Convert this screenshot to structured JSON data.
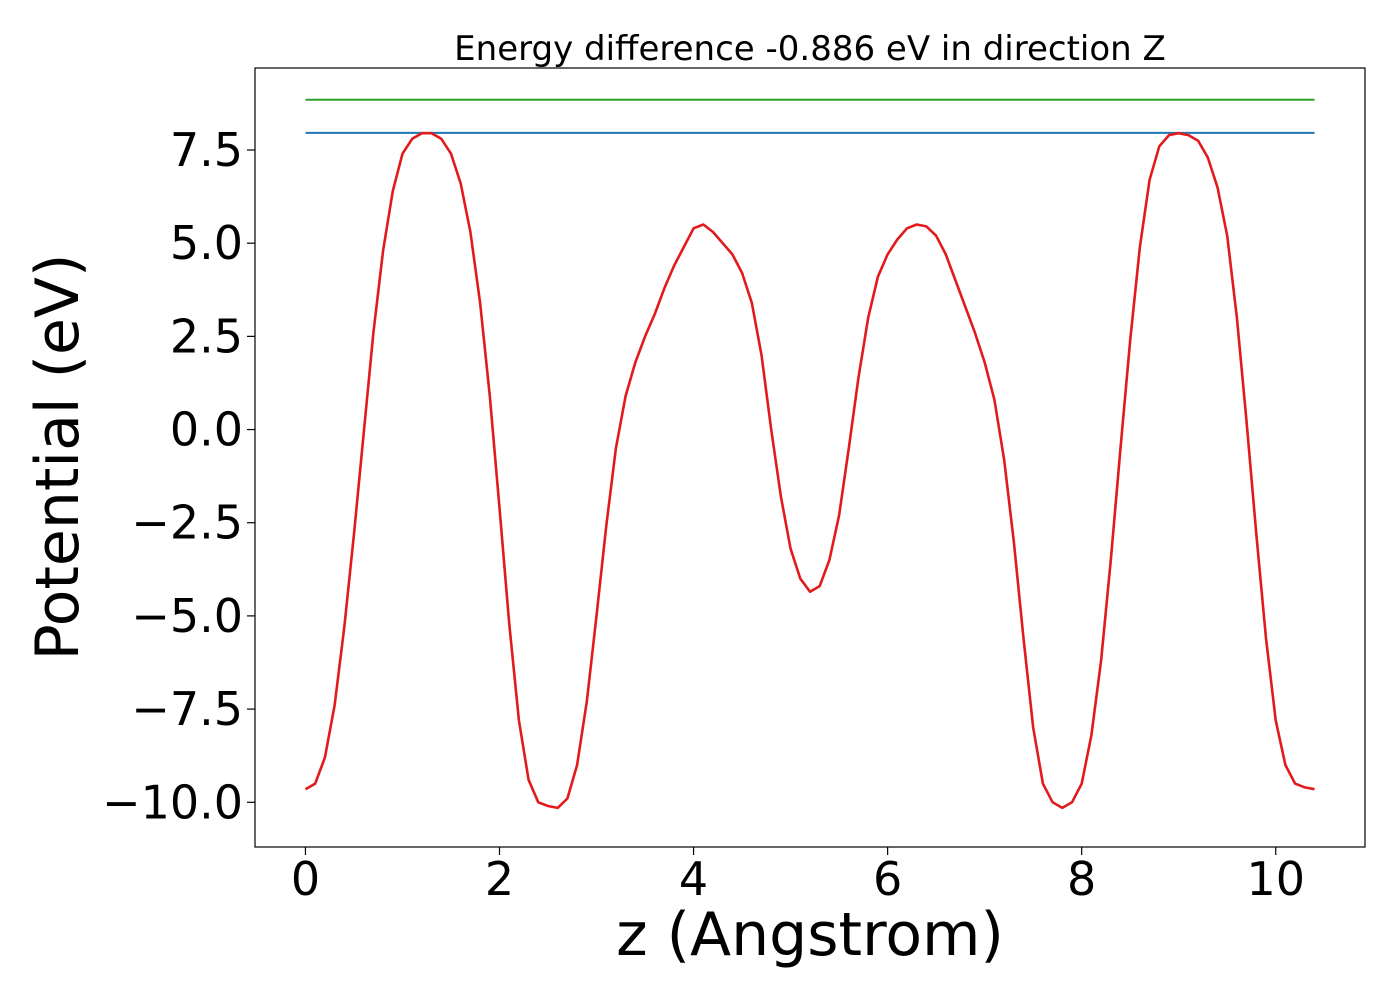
{
  "chart_data": {
    "type": "line",
    "title": "Energy difference -0.886 eV in direction Z",
    "xlabel": "z (Angstrom)",
    "ylabel": "Potential (eV)",
    "xlim": [
      -0.52,
      10.92
    ],
    "ylim": [
      -11.2,
      9.7
    ],
    "grid": false,
    "xticks": [
      0,
      2,
      4,
      6,
      8,
      10
    ],
    "xtick_labels": [
      "0",
      "2",
      "4",
      "6",
      "8",
      "10"
    ],
    "yticks": [
      7.5,
      5.0,
      2.5,
      0.0,
      -2.5,
      -5.0,
      -7.5,
      -10.0
    ],
    "ytick_labels": [
      "7.5",
      "5.0",
      "2.5",
      "0.0",
      "−2.5",
      "−5.0",
      "−7.5",
      "−10.0"
    ],
    "series": [
      {
        "color": "#2ca02c",
        "x": [
          0,
          10.4
        ],
        "y": [
          8.85,
          8.85
        ]
      },
      {
        "color": "#1f77b4",
        "x": [
          0,
          10.4
        ],
        "y": [
          7.96,
          7.96
        ]
      },
      {
        "color": "#e31a1c",
        "x": [
          0,
          0.1,
          0.2,
          0.3,
          0.4,
          0.5,
          0.6,
          0.7,
          0.8,
          0.9,
          1.0,
          1.1,
          1.2,
          1.3,
          1.4,
          1.5,
          1.6,
          1.7,
          1.8,
          1.9,
          2.0,
          2.1,
          2.2,
          2.3,
          2.4,
          2.5,
          2.6,
          2.7,
          2.8,
          2.9,
          3.0,
          3.1,
          3.2,
          3.3,
          3.4,
          3.5,
          3.6,
          3.7,
          3.8,
          3.9,
          4.0,
          4.1,
          4.2,
          4.3,
          4.4,
          4.5,
          4.6,
          4.7,
          4.8,
          4.9,
          5.0,
          5.1,
          5.2,
          5.3,
          5.4,
          5.5,
          5.6,
          5.7,
          5.8,
          5.9,
          6.0,
          6.1,
          6.2,
          6.3,
          6.4,
          6.5,
          6.6,
          6.7,
          6.8,
          6.9,
          7.0,
          7.1,
          7.2,
          7.3,
          7.4,
          7.5,
          7.6,
          7.7,
          7.8,
          7.9,
          8.0,
          8.1,
          8.2,
          8.3,
          8.4,
          8.5,
          8.6,
          8.7,
          8.8,
          8.9,
          9.0,
          9.1,
          9.2,
          9.3,
          9.4,
          9.5,
          9.6,
          9.7,
          9.8,
          9.9,
          10.0,
          10.1,
          10.2,
          10.3,
          10.4
        ],
        "y": [
          -9.65,
          -9.5,
          -8.8,
          -7.4,
          -5.3,
          -2.8,
          -0.1,
          2.6,
          4.8,
          6.4,
          7.4,
          7.8,
          7.95,
          7.95,
          7.8,
          7.4,
          6.6,
          5.3,
          3.4,
          0.9,
          -2.1,
          -5.2,
          -7.8,
          -9.4,
          -10.0,
          -10.1,
          -10.15,
          -9.9,
          -9.0,
          -7.3,
          -5.0,
          -2.6,
          -0.5,
          0.9,
          1.8,
          2.5,
          3.1,
          3.8,
          4.4,
          4.9,
          5.4,
          5.5,
          5.3,
          5.0,
          4.7,
          4.2,
          3.4,
          2.0,
          0.0,
          -1.8,
          -3.2,
          -4.0,
          -4.35,
          -4.2,
          -3.5,
          -2.3,
          -0.5,
          1.4,
          3.0,
          4.1,
          4.7,
          5.1,
          5.4,
          5.5,
          5.45,
          5.2,
          4.7,
          4.0,
          3.3,
          2.6,
          1.8,
          0.8,
          -0.8,
          -3.0,
          -5.6,
          -8.0,
          -9.5,
          -10.0,
          -10.15,
          -10.0,
          -9.5,
          -8.2,
          -6.2,
          -3.5,
          -0.5,
          2.4,
          4.9,
          6.7,
          7.6,
          7.9,
          7.95,
          7.9,
          7.75,
          7.3,
          6.5,
          5.2,
          3.0,
          0.2,
          -2.8,
          -5.6,
          -7.8,
          -9.0,
          -9.5,
          -9.6,
          -9.65
        ]
      }
    ]
  }
}
